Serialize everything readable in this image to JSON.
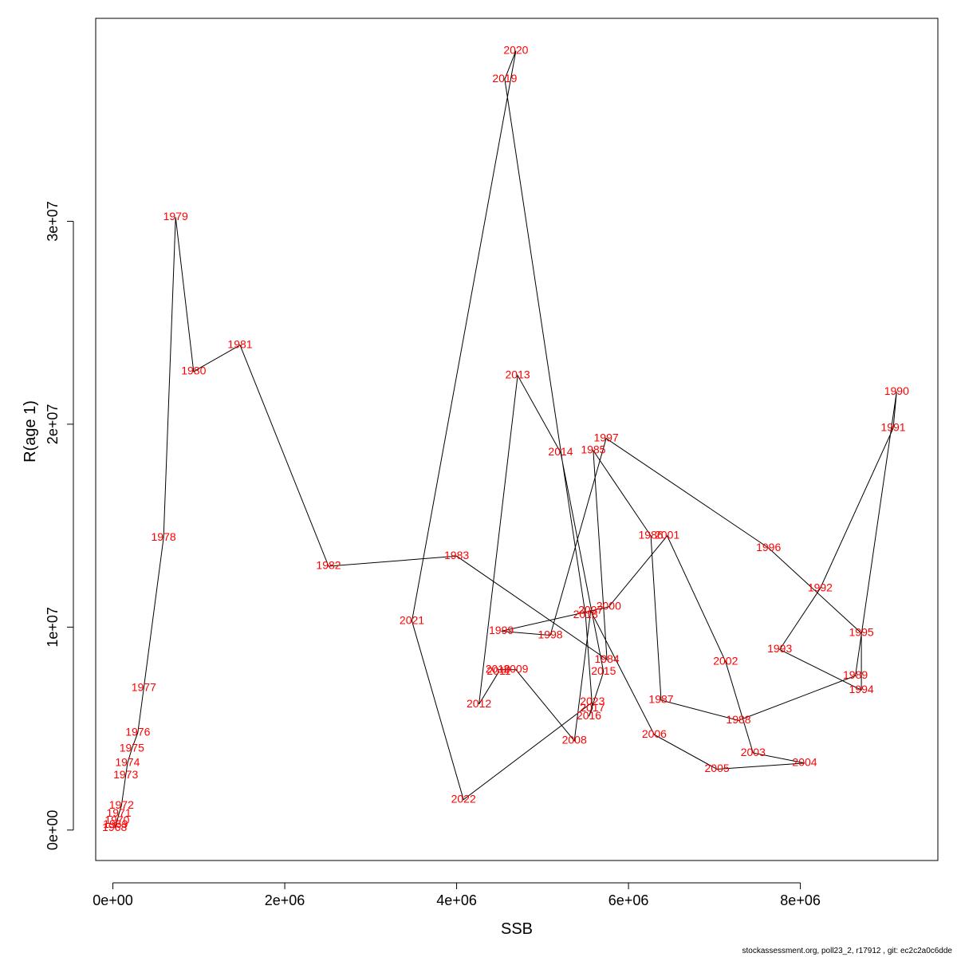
{
  "chart_data": {
    "type": "line",
    "xlabel": "SSB",
    "ylabel": "R(age 1)",
    "xlim": [
      -200000,
      9600000
    ],
    "ylim": [
      -1500000,
      40000000
    ],
    "x_ticks": [
      0,
      2000000,
      4000000,
      6000000,
      8000000
    ],
    "x_tick_labels": [
      "0e+00",
      "2e+06",
      "4e+06",
      "6e+06",
      "8e+06"
    ],
    "y_ticks": [
      0,
      10000000,
      20000000,
      30000000
    ],
    "y_tick_labels": [
      "0e+00",
      "1e+07",
      "2e+07",
      "3e+07"
    ],
    "line_color": "#000000",
    "label_color": "#ff0000",
    "points": [
      {
        "label": "1968",
        "x": 20000,
        "y": 100000
      },
      {
        "label": "1969",
        "x": 30000,
        "y": 250000
      },
      {
        "label": "1970",
        "x": 50000,
        "y": 450000
      },
      {
        "label": "1971",
        "x": 70000,
        "y": 800000
      },
      {
        "label": "1972",
        "x": 100000,
        "y": 1200000
      },
      {
        "label": "1973",
        "x": 150000,
        "y": 2700000
      },
      {
        "label": "1974",
        "x": 170000,
        "y": 3300000
      },
      {
        "label": "1975",
        "x": 220000,
        "y": 4000000
      },
      {
        "label": "1976",
        "x": 290000,
        "y": 4800000
      },
      {
        "label": "1977",
        "x": 360000,
        "y": 7000000
      },
      {
        "label": "1978",
        "x": 590000,
        "y": 14400000
      },
      {
        "label": "1979",
        "x": 730000,
        "y": 30200000
      },
      {
        "label": "1980",
        "x": 940000,
        "y": 22600000
      },
      {
        "label": "1981",
        "x": 1480000,
        "y": 23900000
      },
      {
        "label": "1982",
        "x": 2510000,
        "y": 13000000
      },
      {
        "label": "1983",
        "x": 4000000,
        "y": 13500000
      },
      {
        "label": "1984",
        "x": 5750000,
        "y": 8400000
      },
      {
        "label": "1985",
        "x": 5590000,
        "y": 18700000
      },
      {
        "label": "1986",
        "x": 6260000,
        "y": 14500000
      },
      {
        "label": "1987",
        "x": 6380000,
        "y": 6400000
      },
      {
        "label": "1988",
        "x": 7280000,
        "y": 5400000
      },
      {
        "label": "1989",
        "x": 8640000,
        "y": 7600000
      },
      {
        "label": "1990",
        "x": 9120000,
        "y": 21600000
      },
      {
        "label": "1991",
        "x": 9080000,
        "y": 19800000
      },
      {
        "label": "1992",
        "x": 8230000,
        "y": 11900000
      },
      {
        "label": "1993",
        "x": 7760000,
        "y": 8900000
      },
      {
        "label": "1994",
        "x": 8710000,
        "y": 6900000
      },
      {
        "label": "1995",
        "x": 8710000,
        "y": 9700000
      },
      {
        "label": "1996",
        "x": 7630000,
        "y": 13900000
      },
      {
        "label": "1997",
        "x": 5740000,
        "y": 19300000
      },
      {
        "label": "1998",
        "x": 5090000,
        "y": 9600000
      },
      {
        "label": "1999",
        "x": 4520000,
        "y": 9800000
      },
      {
        "label": "2000",
        "x": 5770000,
        "y": 11000000
      },
      {
        "label": "2001",
        "x": 6450000,
        "y": 14500000
      },
      {
        "label": "2002",
        "x": 7130000,
        "y": 8300000
      },
      {
        "label": "2003",
        "x": 7450000,
        "y": 3800000
      },
      {
        "label": "2004",
        "x": 8050000,
        "y": 3300000
      },
      {
        "label": "2005",
        "x": 7030000,
        "y": 3000000
      },
      {
        "label": "2006",
        "x": 6300000,
        "y": 4700000
      },
      {
        "label": "2007",
        "x": 5560000,
        "y": 10800000
      },
      {
        "label": "2008",
        "x": 5370000,
        "y": 4400000
      },
      {
        "label": "2009",
        "x": 4690000,
        "y": 7900000
      },
      {
        "label": "2010",
        "x": 4480000,
        "y": 7900000
      },
      {
        "label": "2011",
        "x": 4490000,
        "y": 7800000
      },
      {
        "label": "2012",
        "x": 4260000,
        "y": 6200000
      },
      {
        "label": "2013",
        "x": 4710000,
        "y": 22400000
      },
      {
        "label": "2014",
        "x": 5210000,
        "y": 18600000
      },
      {
        "label": "2015",
        "x": 5710000,
        "y": 7800000
      },
      {
        "label": "2016",
        "x": 5540000,
        "y": 5600000
      },
      {
        "label": "2017",
        "x": 5580000,
        "y": 6000000
      },
      {
        "label": "2018",
        "x": 5500000,
        "y": 10600000
      },
      {
        "label": "2019",
        "x": 4560000,
        "y": 37000000
      },
      {
        "label": "2020",
        "x": 4690000,
        "y": 38400000
      },
      {
        "label": "2021",
        "x": 3480000,
        "y": 10300000
      },
      {
        "label": "2022",
        "x": 4080000,
        "y": 1500000
      },
      {
        "label": "2023",
        "x": 5580000,
        "y": 6300000
      }
    ]
  },
  "footer": {
    "credit": "stockassessment.org, poll23_2, r17912 , git: ec2c2a0c6dde"
  }
}
